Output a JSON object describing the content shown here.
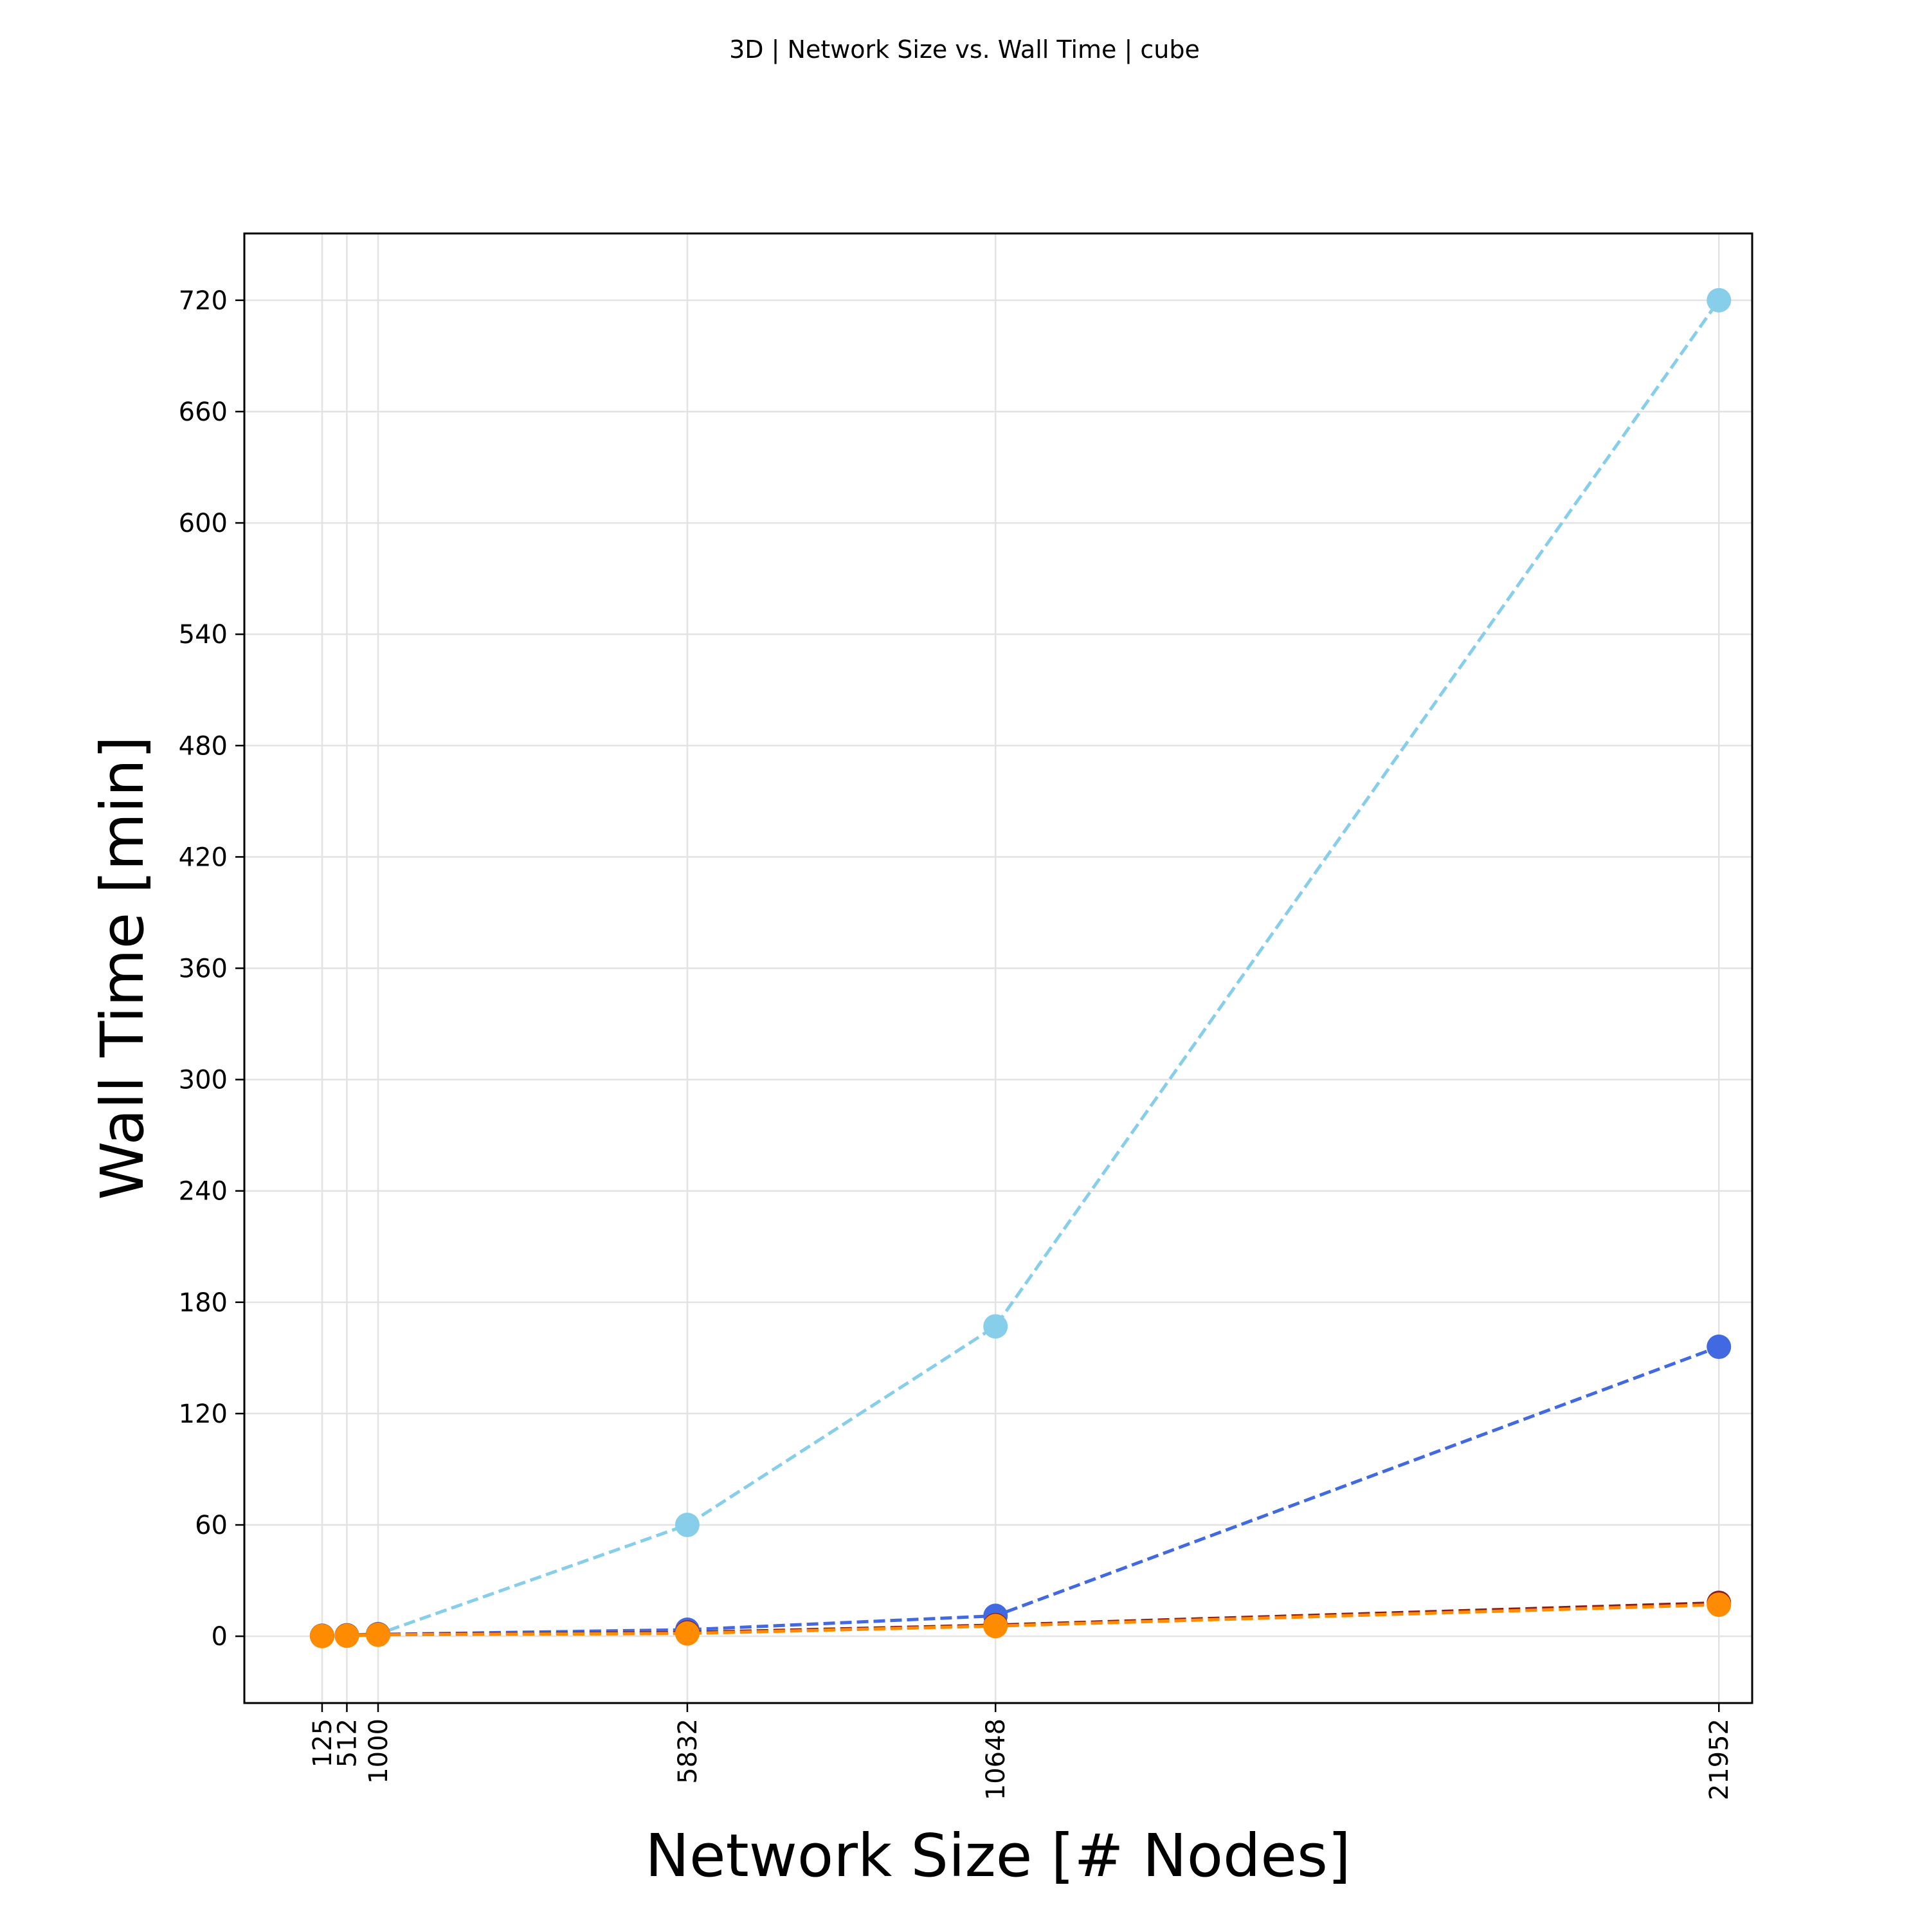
{
  "chart_data": {
    "type": "line",
    "title": "3D | Network Size vs. Wall Time | cube",
    "xlabel": "Network Size [# Nodes]",
    "ylabel": "Wall Time [min]",
    "x": [
      125,
      512,
      1000,
      5832,
      10648,
      21952
    ],
    "xticks": [
      125,
      512,
      1000,
      5832,
      10648,
      21952
    ],
    "xlim": [
      -1090,
      22472
    ],
    "yticks": [
      0,
      60,
      120,
      180,
      240,
      300,
      360,
      420,
      480,
      540,
      600,
      660,
      720
    ],
    "ylim": [
      -36,
      756
    ],
    "grid": true,
    "series": [
      {
        "color": "#87ceeb",
        "values": [
          0.3,
          0.6,
          1.2,
          60,
          167,
          720
        ]
      },
      {
        "color": "#4169e1",
        "values": [
          0.2,
          0.5,
          1.0,
          3.5,
          11,
          156
        ]
      },
      {
        "color": "#8b1a1a",
        "values": [
          0.2,
          0.4,
          1.0,
          2.0,
          6,
          18
        ]
      },
      {
        "color": "#ff8c00",
        "values": [
          0.1,
          0.3,
          0.8,
          1.5,
          5.5,
          17
        ]
      }
    ],
    "line_style": "dashed",
    "marker": "circle"
  }
}
